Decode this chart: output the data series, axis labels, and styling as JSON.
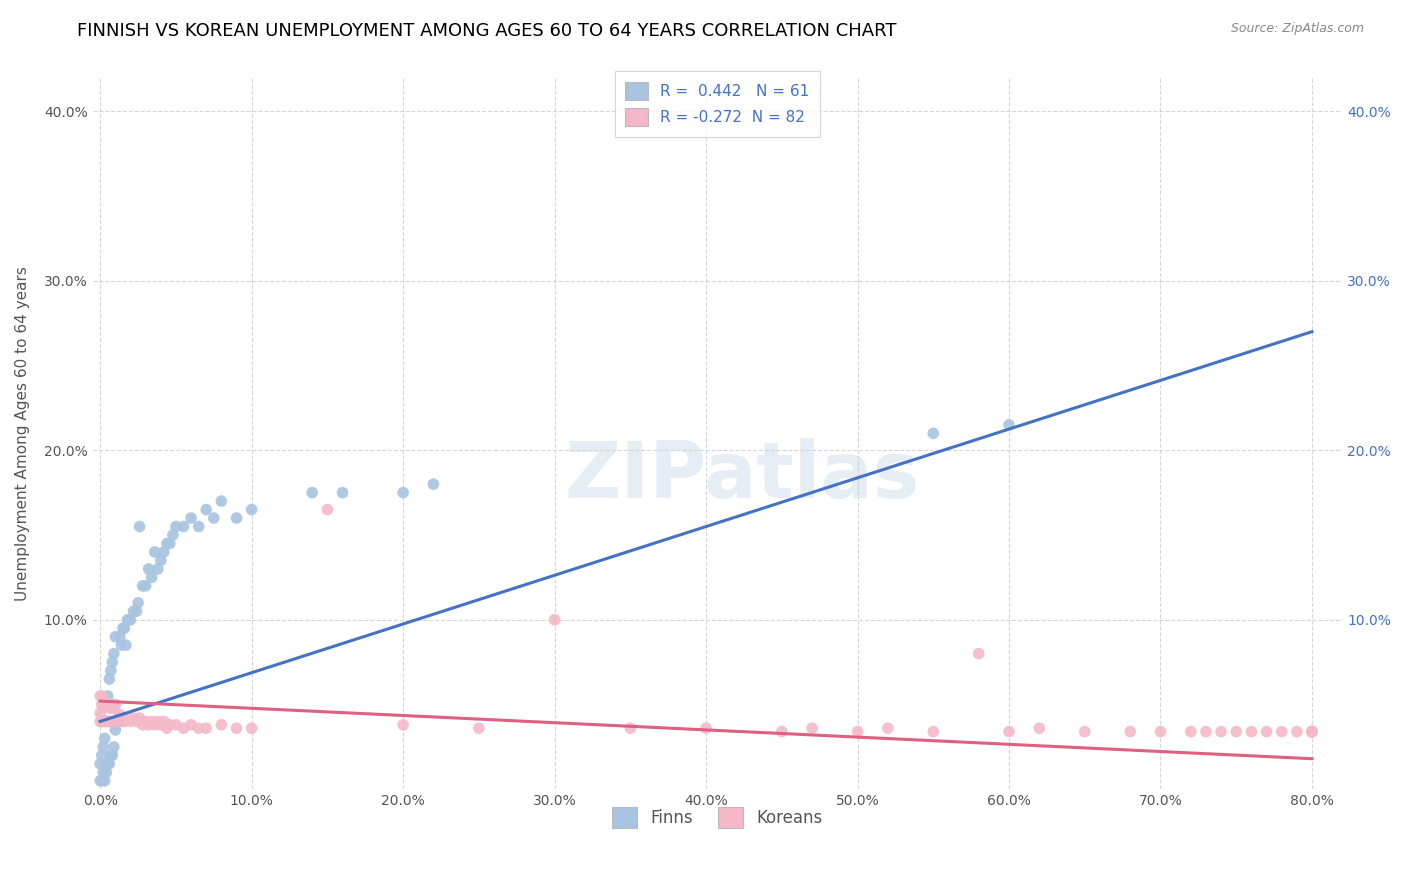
{
  "title": "FINNISH VS KOREAN UNEMPLOYMENT AMONG AGES 60 TO 64 YEARS CORRELATION CHART",
  "source": "Source: ZipAtlas.com",
  "ylabel": "Unemployment Among Ages 60 to 64 years",
  "ylim": [
    0,
    0.42
  ],
  "xlim": [
    -0.005,
    0.82
  ],
  "ytick_vals": [
    0.0,
    0.1,
    0.2,
    0.3,
    0.4
  ],
  "ytick_labels": [
    "",
    "10.0%",
    "20.0%",
    "30.0%",
    "40.0%"
  ],
  "xtick_vals": [
    0.0,
    0.1,
    0.2,
    0.3,
    0.4,
    0.5,
    0.6,
    0.7,
    0.8
  ],
  "xtick_labels": [
    "0.0%",
    "10.0%",
    "20.0%",
    "30.0%",
    "40.0%",
    "50.0%",
    "60.0%",
    "70.0%",
    "80.0%"
  ],
  "finns_color": "#a8c4e0",
  "koreans_color": "#f4b8c8",
  "finns_line_color": "#4472c4",
  "koreans_line_color": "#e06080",
  "legend_label_finns": "Finns",
  "legend_label_koreans": "Koreans",
  "R_finns": 0.442,
  "N_finns": 61,
  "R_koreans": -0.272,
  "N_koreans": 82,
  "background_color": "#ffffff",
  "grid_color": "#cccccc",
  "title_color": "#000000",
  "title_fontsize": 13,
  "source_fontsize": 9,
  "watermark_text": "ZIPatlas",
  "finns_line_x0": 0.0,
  "finns_line_y0": 0.04,
  "finns_line_x1": 0.8,
  "finns_line_y1": 0.27,
  "koreans_line_x0": 0.0,
  "koreans_line_y0": 0.052,
  "koreans_line_x1": 0.8,
  "koreans_line_y1": 0.018,
  "finns_x": [
    0.0,
    0.0,
    0.001,
    0.001,
    0.002,
    0.002,
    0.003,
    0.003,
    0.004,
    0.004,
    0.005,
    0.005,
    0.006,
    0.006,
    0.007,
    0.007,
    0.008,
    0.008,
    0.009,
    0.009,
    0.01,
    0.01,
    0.012,
    0.013,
    0.014,
    0.015,
    0.016,
    0.017,
    0.018,
    0.019,
    0.02,
    0.022,
    0.024,
    0.025,
    0.026,
    0.028,
    0.03,
    0.032,
    0.034,
    0.036,
    0.038,
    0.04,
    0.042,
    0.044,
    0.046,
    0.048,
    0.05,
    0.055,
    0.06,
    0.065,
    0.07,
    0.075,
    0.08,
    0.09,
    0.1,
    0.14,
    0.16,
    0.2,
    0.22,
    0.55,
    0.6
  ],
  "finns_y": [
    0.005,
    0.015,
    0.005,
    0.02,
    0.01,
    0.025,
    0.005,
    0.03,
    0.01,
    0.04,
    0.015,
    0.055,
    0.015,
    0.065,
    0.02,
    0.07,
    0.02,
    0.075,
    0.025,
    0.08,
    0.035,
    0.09,
    0.04,
    0.09,
    0.085,
    0.095,
    0.095,
    0.085,
    0.1,
    0.1,
    0.1,
    0.105,
    0.105,
    0.11,
    0.155,
    0.12,
    0.12,
    0.13,
    0.125,
    0.14,
    0.13,
    0.135,
    0.14,
    0.145,
    0.145,
    0.15,
    0.155,
    0.155,
    0.16,
    0.155,
    0.165,
    0.16,
    0.17,
    0.16,
    0.165,
    0.175,
    0.175,
    0.175,
    0.18,
    0.21,
    0.215
  ],
  "koreans_x": [
    0.0,
    0.0,
    0.0,
    0.001,
    0.001,
    0.001,
    0.002,
    0.002,
    0.003,
    0.003,
    0.004,
    0.004,
    0.005,
    0.005,
    0.006,
    0.006,
    0.007,
    0.007,
    0.008,
    0.008,
    0.009,
    0.009,
    0.01,
    0.01,
    0.012,
    0.013,
    0.014,
    0.015,
    0.016,
    0.018,
    0.02,
    0.022,
    0.024,
    0.026,
    0.028,
    0.03,
    0.032,
    0.034,
    0.036,
    0.038,
    0.04,
    0.042,
    0.044,
    0.046,
    0.05,
    0.055,
    0.06,
    0.065,
    0.07,
    0.08,
    0.09,
    0.1,
    0.15,
    0.2,
    0.25,
    0.3,
    0.35,
    0.4,
    0.45,
    0.47,
    0.5,
    0.52,
    0.55,
    0.58,
    0.6,
    0.62,
    0.65,
    0.68,
    0.7,
    0.72,
    0.73,
    0.74,
    0.75,
    0.76,
    0.77,
    0.78,
    0.79,
    0.8,
    0.8,
    0.8,
    0.8,
    0.8
  ],
  "koreans_y": [
    0.04,
    0.045,
    0.055,
    0.04,
    0.05,
    0.055,
    0.04,
    0.05,
    0.04,
    0.05,
    0.04,
    0.05,
    0.04,
    0.05,
    0.04,
    0.048,
    0.04,
    0.048,
    0.04,
    0.048,
    0.04,
    0.05,
    0.04,
    0.05,
    0.042,
    0.044,
    0.04,
    0.042,
    0.04,
    0.042,
    0.04,
    0.042,
    0.04,
    0.042,
    0.038,
    0.04,
    0.038,
    0.04,
    0.038,
    0.04,
    0.038,
    0.04,
    0.036,
    0.038,
    0.038,
    0.036,
    0.038,
    0.036,
    0.036,
    0.038,
    0.036,
    0.036,
    0.165,
    0.038,
    0.036,
    0.1,
    0.036,
    0.036,
    0.034,
    0.036,
    0.034,
    0.036,
    0.034,
    0.08,
    0.034,
    0.036,
    0.034,
    0.034,
    0.034,
    0.034,
    0.034,
    0.034,
    0.034,
    0.034,
    0.034,
    0.034,
    0.034,
    0.034,
    0.034,
    0.034,
    0.034,
    0.034
  ]
}
